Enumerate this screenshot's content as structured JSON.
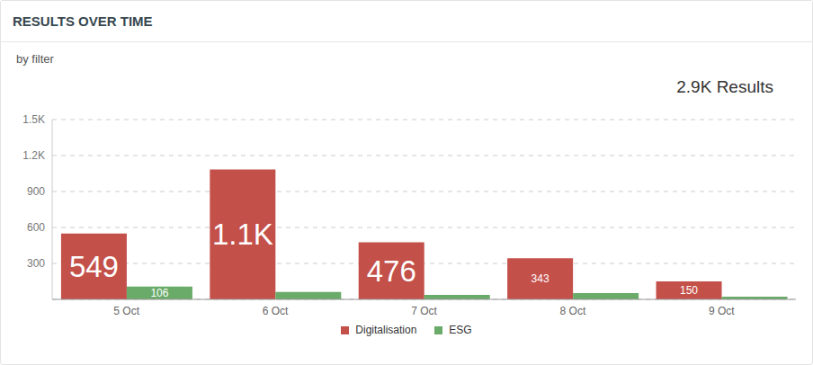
{
  "chart_data": {
    "type": "bar",
    "title": "RESULTS OVER TIME",
    "subtitle": "by filter",
    "annotations": [
      "2.9K Results"
    ],
    "categories": [
      "5 Oct",
      "6 Oct",
      "7 Oct",
      "8 Oct",
      "9 Oct"
    ],
    "series": [
      {
        "name": "Digitalisation",
        "color": "#c4504a",
        "values": [
          549,
          1083,
          476,
          343,
          150
        ],
        "value_labels": [
          "549",
          "1.1K",
          "476",
          "343",
          "150"
        ]
      },
      {
        "name": "ESG",
        "color": "#6aab6a",
        "values": [
          106,
          61,
          38,
          53,
          23
        ],
        "value_labels": [
          "106",
          null,
          null,
          null,
          null
        ]
      }
    ],
    "ylim": [
      0,
      1500
    ],
    "yticks": [
      300,
      600,
      900,
      {
        "value": 1200,
        "label": "1.2K"
      },
      {
        "value": 1500,
        "label": "1.5K"
      }
    ],
    "grid": true,
    "data_labels": true,
    "legend": "bottom"
  }
}
